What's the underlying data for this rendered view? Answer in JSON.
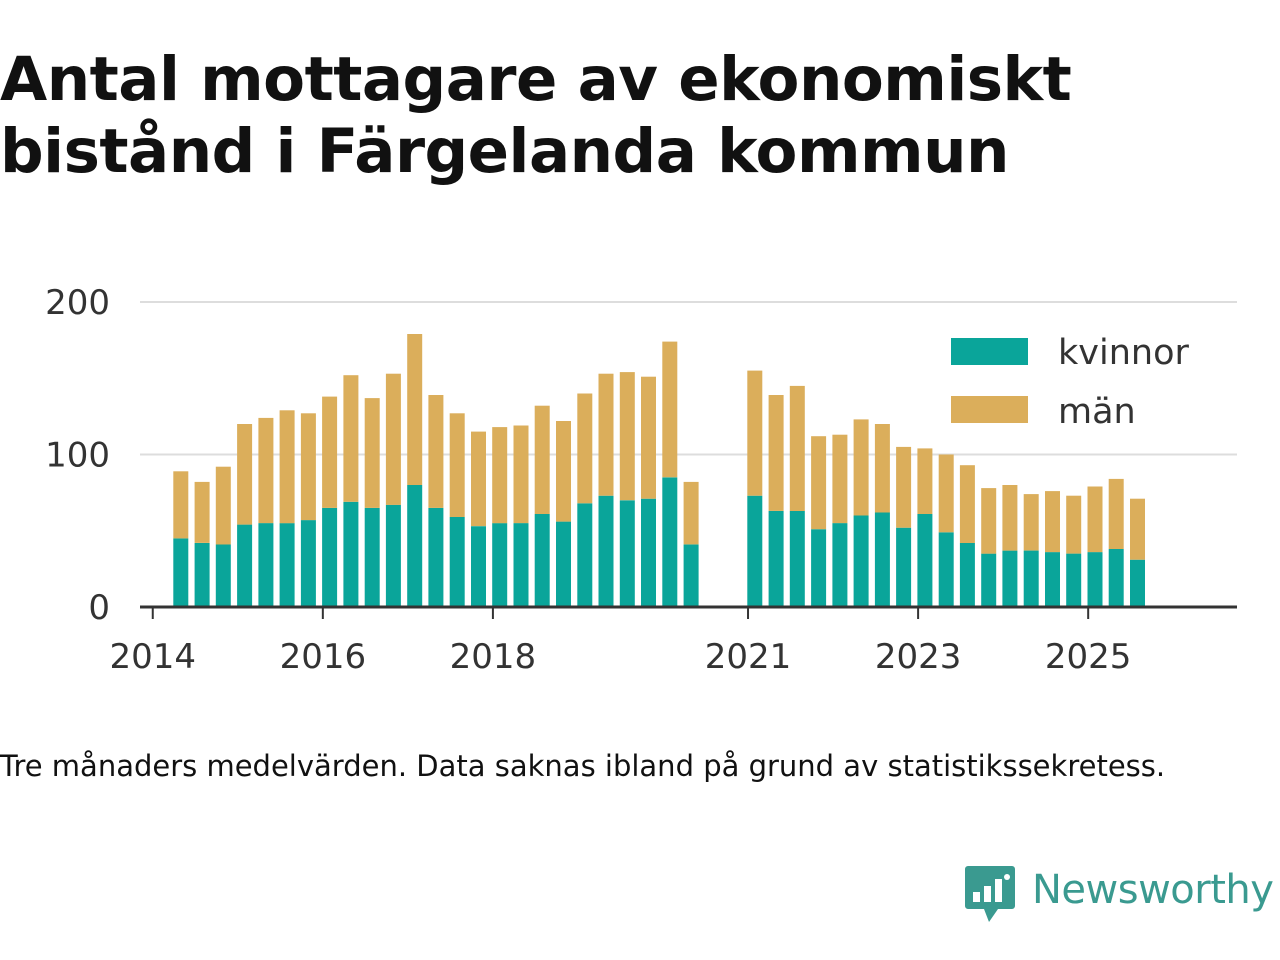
{
  "title": "Antal mottagare av ekonomiskt bistånd i Färgelanda kommun",
  "caption": "Tre månaders medelvärden. Data saknas ibland på grund av statistikssekretess.",
  "brand": {
    "name": "Newsworthy",
    "icon": "newsworthy-logo-icon",
    "color": "#3a9a90"
  },
  "colors": {
    "kvinnor": "#0aa59a",
    "man": "#dbae5b",
    "grid": "#dddddd",
    "axis": "#333333",
    "text": "#333333"
  },
  "chart_data": {
    "type": "bar",
    "stacked": true,
    "title": "Antal mottagare av ekonomiskt bistånd i Färgelanda kommun",
    "xlabel": "",
    "ylabel": "",
    "ylim": [
      0,
      200
    ],
    "yticks": [
      0,
      100,
      200
    ],
    "xlim": [
      2013.85,
      2026.75
    ],
    "xticks": [
      {
        "value": 2014,
        "label": "2014"
      },
      {
        "value": 2016,
        "label": "2016"
      },
      {
        "value": 2018,
        "label": "2018"
      },
      {
        "value": 2021,
        "label": "2021"
      },
      {
        "value": 2023,
        "label": "2023"
      },
      {
        "value": 2025,
        "label": "2025"
      }
    ],
    "grid": true,
    "legend_position": "top-right",
    "categories": [
      "2014-05",
      "2014-08",
      "2014-11",
      "2015-02",
      "2015-05",
      "2015-08",
      "2015-11",
      "2016-02",
      "2016-05",
      "2016-08",
      "2016-11",
      "2017-02",
      "2017-05",
      "2017-08",
      "2017-11",
      "2018-02",
      "2018-05",
      "2018-08",
      "2018-11",
      "2019-02",
      "2019-05",
      "2019-08",
      "2019-11",
      "2020-02",
      "2020-05",
      "2021-02",
      "2021-05",
      "2021-08",
      "2021-11",
      "2022-02",
      "2022-05",
      "2022-08",
      "2022-11",
      "2023-02",
      "2023-05",
      "2023-08",
      "2023-11",
      "2024-02",
      "2024-05",
      "2024-08",
      "2024-11",
      "2025-02",
      "2025-05",
      "2025-08"
    ],
    "x": [
      2014.33,
      2014.58,
      2014.83,
      2015.08,
      2015.33,
      2015.58,
      2015.83,
      2016.08,
      2016.33,
      2016.58,
      2016.83,
      2017.08,
      2017.33,
      2017.58,
      2017.83,
      2018.08,
      2018.33,
      2018.58,
      2018.83,
      2019.08,
      2019.33,
      2019.58,
      2019.83,
      2020.08,
      2020.33,
      2021.08,
      2021.33,
      2021.58,
      2021.83,
      2022.08,
      2022.33,
      2022.58,
      2022.83,
      2023.08,
      2023.33,
      2023.58,
      2023.83,
      2024.08,
      2024.33,
      2024.58,
      2024.83,
      2025.08,
      2025.33,
      2025.58
    ],
    "series": [
      {
        "name": "kvinnor",
        "color": "#0aa59a",
        "values": [
          45,
          42,
          41,
          54,
          55,
          55,
          57,
          65,
          69,
          65,
          67,
          80,
          65,
          59,
          53,
          55,
          55,
          61,
          56,
          68,
          73,
          70,
          71,
          85,
          41,
          73,
          63,
          63,
          51,
          55,
          60,
          62,
          52,
          61,
          49,
          42,
          35,
          37,
          37,
          36,
          35,
          36,
          38,
          31
        ]
      },
      {
        "name": "män",
        "color": "#dbae5b",
        "values": [
          44,
          40,
          51,
          66,
          69,
          74,
          70,
          73,
          83,
          72,
          86,
          99,
          74,
          68,
          62,
          63,
          64,
          71,
          66,
          72,
          80,
          84,
          80,
          89,
          41,
          82,
          76,
          82,
          61,
          58,
          63,
          58,
          53,
          43,
          51,
          51,
          43,
          43,
          37,
          40,
          38,
          43,
          46,
          40
        ]
      }
    ]
  }
}
